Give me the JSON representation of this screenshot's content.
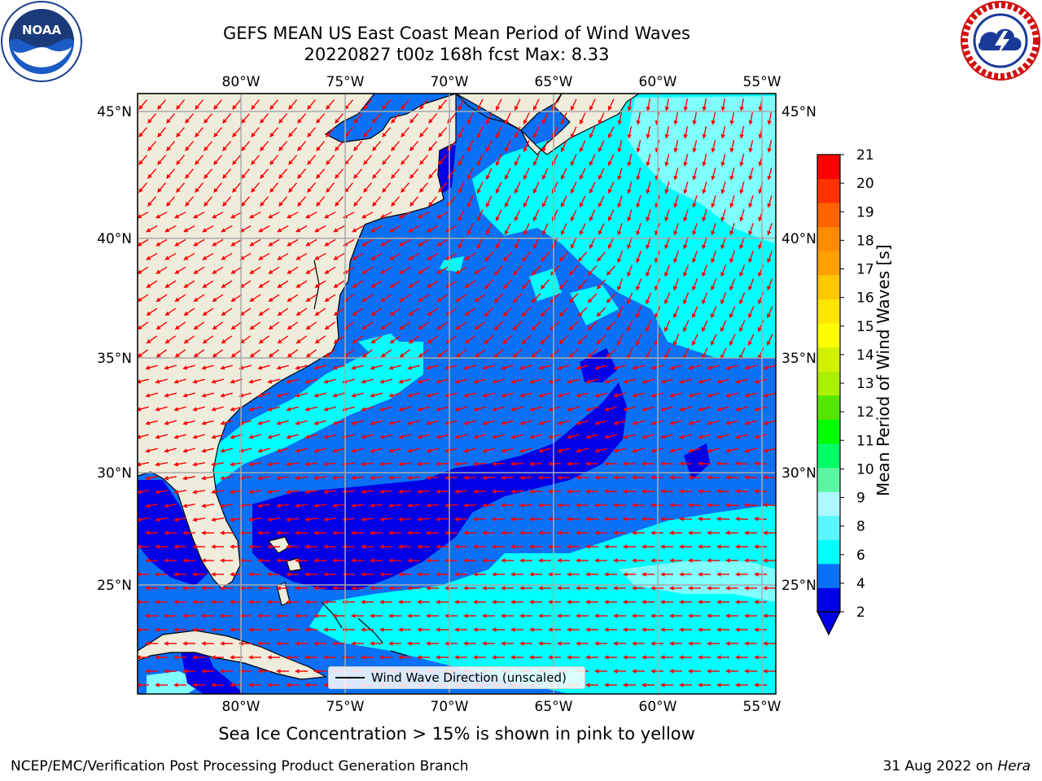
{
  "title_line1": "GEFS MEAN US East Coast Mean Period of Wind Waves",
  "title_line2": "20220827 t00z 168h fcst   Max: 8.33",
  "map": {
    "lon_ticks": [
      "80°W",
      "75°W",
      "70°W",
      "65°W",
      "60°W",
      "55°W"
    ],
    "lat_ticks": [
      "45°N",
      "40°N",
      "35°N",
      "30°N",
      "25°N"
    ],
    "lon_range": [
      -85,
      -54.5
    ],
    "lat_range": [
      20.5,
      46
    ],
    "ocean_colors": {
      "dark": "#0000e6",
      "mid": "#0a70f5",
      "light": "#00ffff",
      "pale": "#80ffff"
    },
    "land_color": "#efecdc",
    "arrow_color": "#ff0000",
    "grid": true
  },
  "legend": {
    "label": "Wind Wave Direction (unscaled)"
  },
  "colorbar": {
    "label": "Mean Period of Wind Waves [s]",
    "ticks": [
      "21",
      "20",
      "19",
      "18",
      "17",
      "16",
      "15",
      "14",
      "13",
      "12",
      "11",
      "10",
      "9",
      "8",
      "6",
      "4",
      "2"
    ],
    "colors": [
      "#0000e6",
      "#0a70f5",
      "#00ffff",
      "#5af5ff",
      "#aafaff",
      "#5af5a0",
      "#00ff64",
      "#00ff00",
      "#55e600",
      "#aaf000",
      "#d2f000",
      "#ffff00",
      "#ffe600",
      "#ffc800",
      "#ffa000",
      "#ff8c00",
      "#ff6400",
      "#ff3200",
      "#ff0000"
    ]
  },
  "subtitle": "Sea Ice Concentration > 15% is shown in pink to yellow",
  "footer": {
    "left": "NCEP/EMC/Verification Post Processing Product Generation Branch",
    "date": "31 Aug 2022 on ",
    "machine": "Hera"
  },
  "logos": {
    "noaa_text": "NOAA"
  }
}
